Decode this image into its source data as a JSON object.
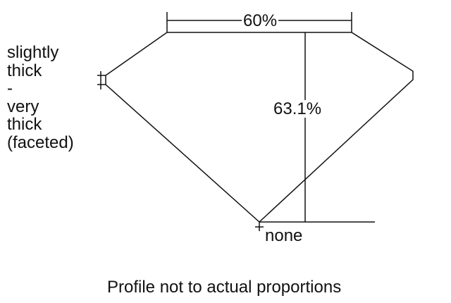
{
  "table_label": "60%",
  "depth_label": "63.1%",
  "culet_label": "none",
  "girdle_label_lines": [
    "slightly",
    "thick",
    "-",
    "very",
    "thick",
    "(faceted)"
  ],
  "footer": "Profile not to actual proportions"
}
